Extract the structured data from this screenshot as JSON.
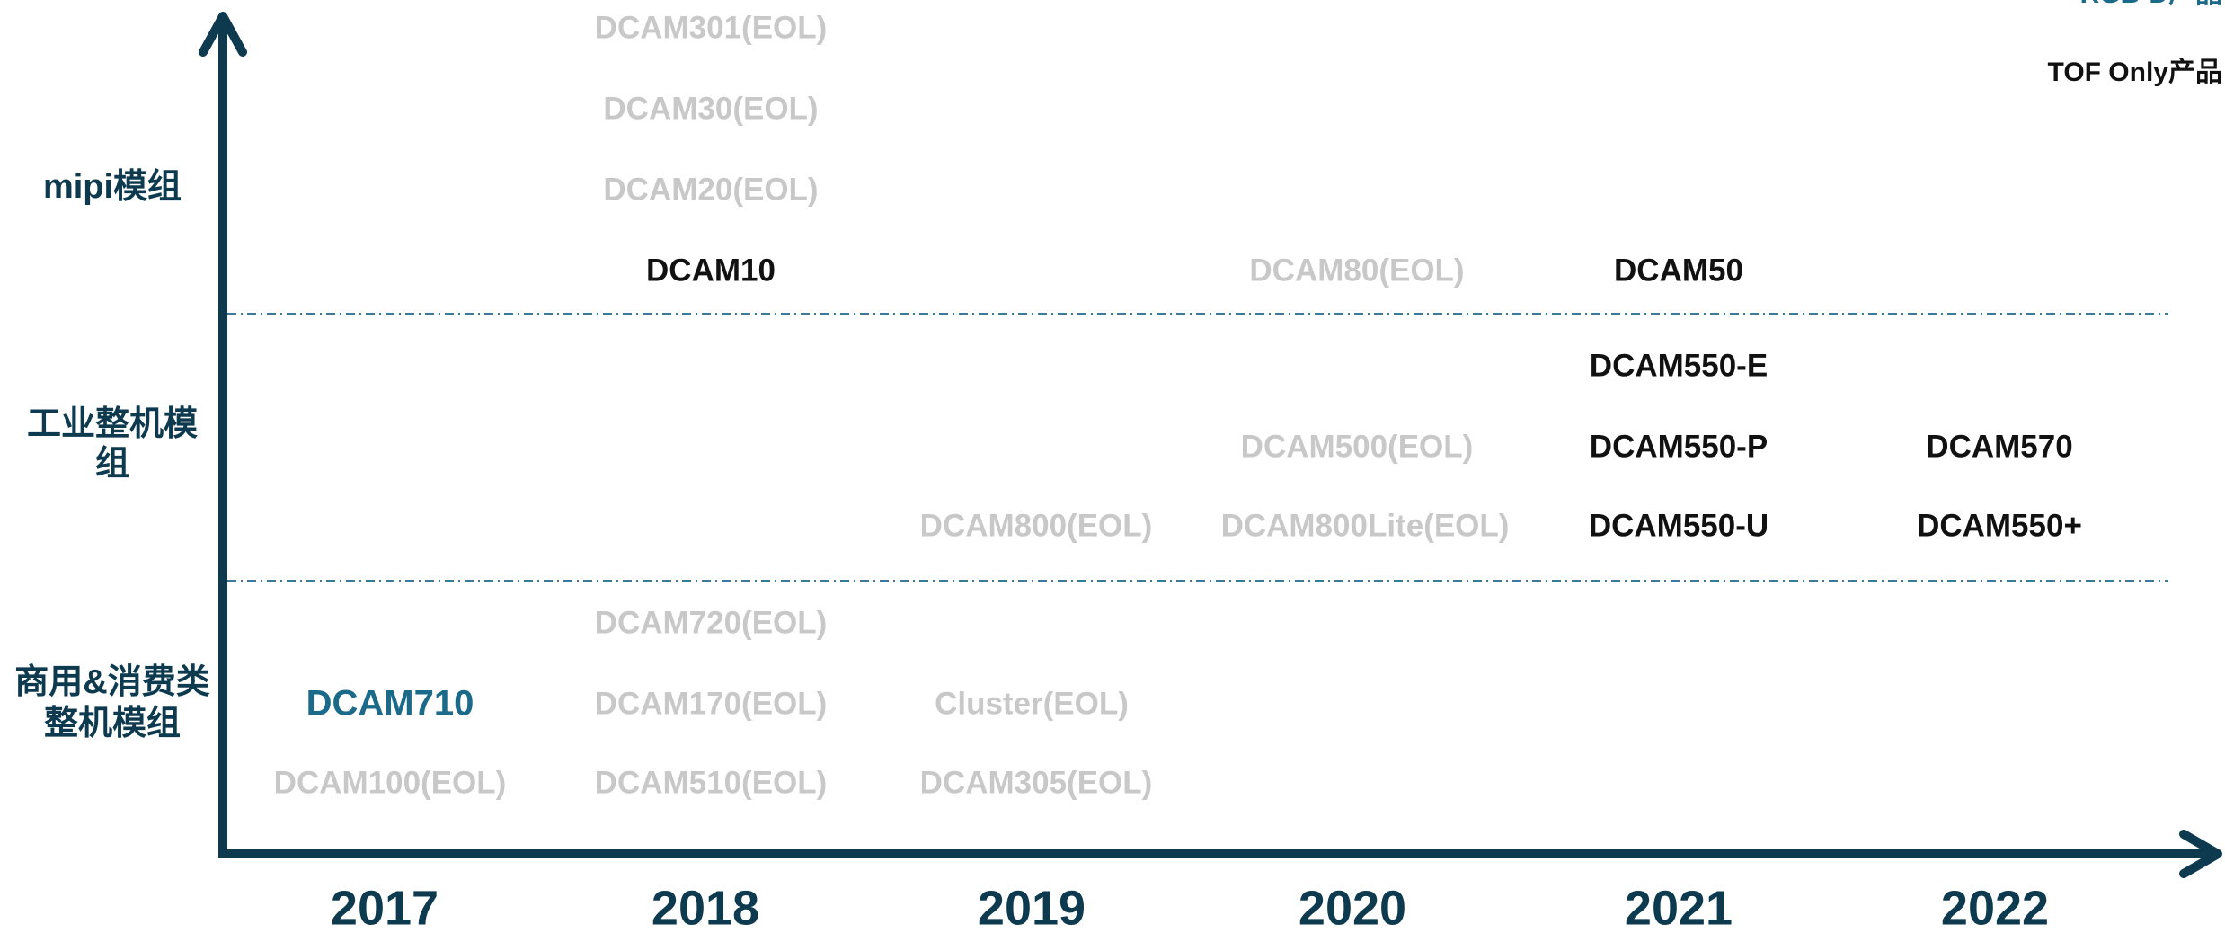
{
  "legend": [
    {
      "label": "RGB-D产品",
      "color": "#1b6a8a"
    },
    {
      "label": "TOF Only产品",
      "color": "#111111"
    }
  ],
  "rows": [
    {
      "lines": [
        "mipi模组"
      ]
    },
    {
      "lines": [
        "工业整机模",
        "组"
      ]
    },
    {
      "lines": [
        "商用&消费类",
        "整机模组"
      ]
    }
  ],
  "years": [
    "2017",
    "2018",
    "2019",
    "2020",
    "2021",
    "2022"
  ],
  "products": [
    {
      "name": "DCAM301(EOL)",
      "color": "#c8c8c8"
    },
    {
      "name": "DCAM30(EOL)",
      "color": "#c8c8c8"
    },
    {
      "name": "DCAM20(EOL)",
      "color": "#c8c8c8"
    },
    {
      "name": "DCAM10",
      "color": "#111111"
    },
    {
      "name": "DCAM80(EOL)",
      "color": "#c8c8c8"
    },
    {
      "name": "DCAM50",
      "color": "#111111"
    },
    {
      "name": "DCAM550-E",
      "color": "#111111"
    },
    {
      "name": "DCAM500(EOL)",
      "color": "#c8c8c8"
    },
    {
      "name": "DCAM550-P",
      "color": "#111111"
    },
    {
      "name": "DCAM570",
      "color": "#111111"
    },
    {
      "name": "DCAM800(EOL)",
      "color": "#c8c8c8"
    },
    {
      "name": "DCAM800Lite(EOL)",
      "color": "#c8c8c8"
    },
    {
      "name": "DCAM550-U",
      "color": "#111111"
    },
    {
      "name": "DCAM550+",
      "color": "#111111"
    },
    {
      "name": "DCAM720(EOL)",
      "color": "#c8c8c8"
    },
    {
      "name": "DCAM710",
      "color": "#1b6a8a"
    },
    {
      "name": "DCAM170(EOL)",
      "color": "#c8c8c8"
    },
    {
      "name": "Cluster(EOL)",
      "color": "#c8c8c8"
    },
    {
      "name": "DCAM100(EOL)",
      "color": "#c8c8c8"
    },
    {
      "name": "DCAM510(EOL)",
      "color": "#c8c8c8"
    },
    {
      "name": "DCAM305(EOL)",
      "color": "#c8c8c8"
    }
  ]
}
